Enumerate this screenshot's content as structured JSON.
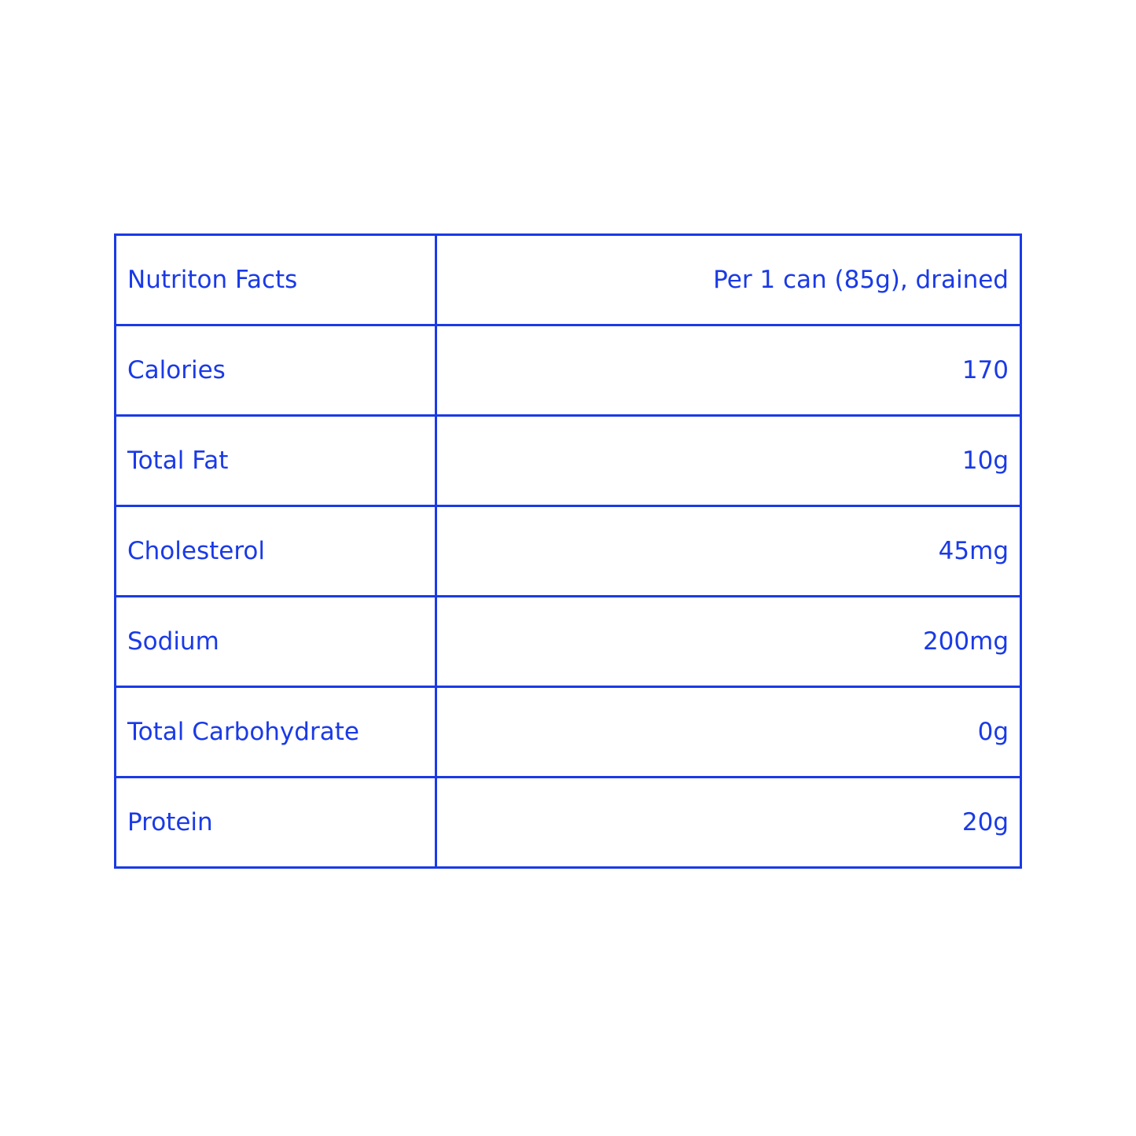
{
  "table": {
    "rows": [
      [
        "Nutriton Facts",
        "Per 1 can (85g), drained"
      ],
      [
        "Calories",
        "170"
      ],
      [
        "Total Fat",
        "10g"
      ],
      [
        "Cholesterol",
        "45mg"
      ],
      [
        "Sodium",
        "200mg"
      ],
      [
        "Total Carbohydrate",
        "0g"
      ],
      [
        "Protein",
        "20g"
      ]
    ]
  }
}
